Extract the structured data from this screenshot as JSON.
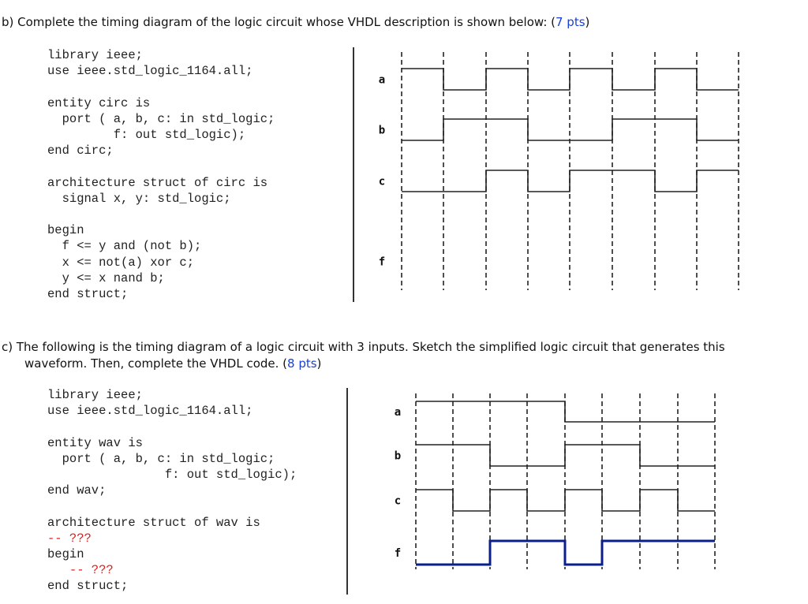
{
  "part_b": {
    "prefix": "b)  Complete the timing diagram of the logic circuit whose VHDL description is shown below: (",
    "points": "7 pts",
    "suffix": ")",
    "code_lines": [
      "library ieee;",
      "use ieee.std_logic_1164.all;",
      "",
      "entity circ is",
      "  port ( a, b, c: in std_logic;",
      "         f: out std_logic);",
      "end circ;",
      "",
      "architecture struct of circ is",
      "  signal x, y: std_logic;",
      "",
      "begin",
      "  f <= y and (not b);",
      "  x <= not(a) xor c;",
      "  y <= x nand b;",
      "end struct;"
    ],
    "signals": [
      {
        "name": "a",
        "levels": [
          1,
          0,
          1,
          0,
          1,
          0,
          1,
          0
        ]
      },
      {
        "name": "b",
        "levels": [
          0,
          1,
          1,
          0,
          0,
          1,
          1,
          0
        ]
      },
      {
        "name": "c",
        "levels": [
          0,
          0,
          1,
          0,
          1,
          1,
          0,
          1
        ]
      },
      {
        "name": "f",
        "levels": []
      }
    ]
  },
  "part_c": {
    "line1_prefix": "c)  The following is the timing diagram of a logic circuit with 3 inputs. Sketch the simplified logic circuit that generates this",
    "line2_prefix": "waveform. Then, complete the VHDL code. (",
    "points": "8 pts",
    "suffix": ")",
    "code_lines": [
      {
        "text": "library ieee;",
        "red": false
      },
      {
        "text": "use ieee.std_logic_1164.all;",
        "red": false
      },
      {
        "text": "",
        "red": false
      },
      {
        "text": "entity wav is",
        "red": false
      },
      {
        "text": "  port ( a, b, c: in std_logic;",
        "red": false
      },
      {
        "text": "                f: out std_logic);",
        "red": false
      },
      {
        "text": "end wav;",
        "red": false
      },
      {
        "text": "",
        "red": false
      },
      {
        "text": "architecture struct of wav is",
        "red": false
      },
      {
        "text": "-- ???",
        "red": true
      },
      {
        "text": "begin",
        "red": false
      },
      {
        "text": "   -- ???",
        "red": true
      },
      {
        "text": "end struct;",
        "red": false
      }
    ],
    "signals": [
      {
        "name": "a",
        "levels": [
          1,
          1,
          1,
          1,
          0,
          0,
          0,
          0
        ]
      },
      {
        "name": "b",
        "levels": [
          1,
          1,
          0,
          0,
          1,
          1,
          0,
          0
        ]
      },
      {
        "name": "c",
        "levels": [
          1,
          0,
          1,
          0,
          1,
          0,
          1,
          0
        ]
      },
      {
        "name": "f",
        "levels": [
          0,
          0,
          1,
          1,
          0,
          1,
          1,
          1
        ]
      }
    ]
  },
  "colors": {
    "points": "#1a3fd6",
    "comment": "#e01b1b",
    "output_wave": "#0a1f8c",
    "wave": "#222222",
    "grid": "#222222"
  }
}
